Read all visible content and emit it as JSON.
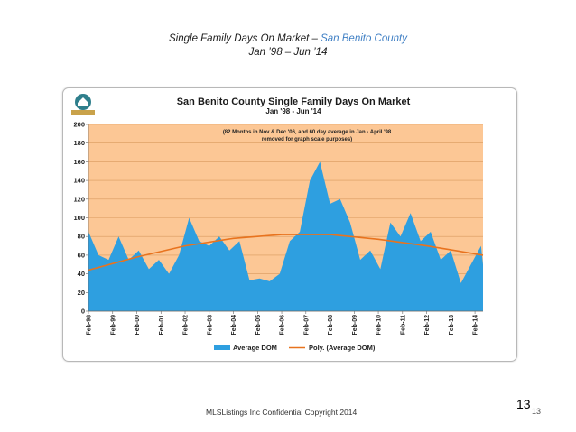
{
  "slide": {
    "title_main": "Single Family Days On Market",
    "title_separator": " – ",
    "title_county": "San Benito County",
    "subtitle": "Jan ’98 – Jun ’14",
    "footer": "MLSListings Inc Confidential Copyright 2014",
    "page_number": "13",
    "page_number_small": "13"
  },
  "colors": {
    "plot_background": "#fcc795",
    "area_fill": "#2e9fe0",
    "trend_line": "#e8731e",
    "gridline": "#d99a5e",
    "logo_teal": "#2f7f8c",
    "logo_gold": "#c9a24a"
  },
  "chart_data": {
    "type": "area",
    "title": "San Benito County Single Family Days On Market",
    "subtitle": "Jan '98 - Jun '14",
    "annotation": "(82 Months in Nov & Dec '06, and 60 day average in Jan - April '98 removed for graph scale purposes)",
    "annotation_lines": [
      "(82 Months in Nov & Dec '06, and 60 day average in Jan - April '98",
      "removed for graph scale purposes)"
    ],
    "ylim": [
      0,
      200
    ],
    "y_ticks": [
      0,
      20,
      40,
      60,
      80,
      100,
      120,
      140,
      160,
      180,
      200
    ],
    "x_ticks": [
      "Feb-98",
      "Feb-99",
      "Feb-00",
      "Feb-01",
      "Feb-02",
      "Feb-03",
      "Feb-04",
      "Feb-05",
      "Feb-06",
      "Feb-07",
      "Feb-08",
      "Feb-09",
      "Feb-10",
      "Feb-11",
      "Feb-12",
      "Feb-13",
      "Feb-14"
    ],
    "grid": "horizontal",
    "legend_position": "bottom",
    "series": [
      {
        "name": "Average DOM",
        "type": "area",
        "x": [
          "1998-02",
          "1998-07",
          "1998-12",
          "1999-05",
          "1999-10",
          "2000-03",
          "2000-08",
          "2001-01",
          "2001-06",
          "2001-11",
          "2002-04",
          "2002-09",
          "2003-02",
          "2003-07",
          "2003-12",
          "2004-05",
          "2004-10",
          "2005-03",
          "2005-08",
          "2006-01",
          "2006-06",
          "2006-11",
          "2007-04",
          "2007-09",
          "2008-02",
          "2008-07",
          "2008-12",
          "2009-05",
          "2009-10",
          "2010-03",
          "2010-08",
          "2011-01",
          "2011-06",
          "2011-11",
          "2012-04",
          "2012-09",
          "2013-02",
          "2013-07",
          "2013-12",
          "2014-05",
          "2014-06"
        ],
        "values": [
          85,
          60,
          55,
          80,
          55,
          65,
          45,
          55,
          40,
          60,
          100,
          75,
          70,
          80,
          65,
          75,
          33,
          35,
          32,
          40,
          75,
          85,
          140,
          160,
          115,
          120,
          95,
          55,
          65,
          45,
          95,
          80,
          105,
          75,
          85,
          55,
          65,
          30,
          50,
          70,
          50
        ]
      },
      {
        "name": "Poly. (Average DOM)",
        "type": "line",
        "x": [
          "1998-02",
          "2000-02",
          "2002-02",
          "2004-02",
          "2006-02",
          "2008-02",
          "2010-02",
          "2012-02",
          "2014-06"
        ],
        "values": [
          44,
          58,
          70,
          78,
          82,
          82,
          77,
          70,
          60
        ]
      }
    ]
  }
}
